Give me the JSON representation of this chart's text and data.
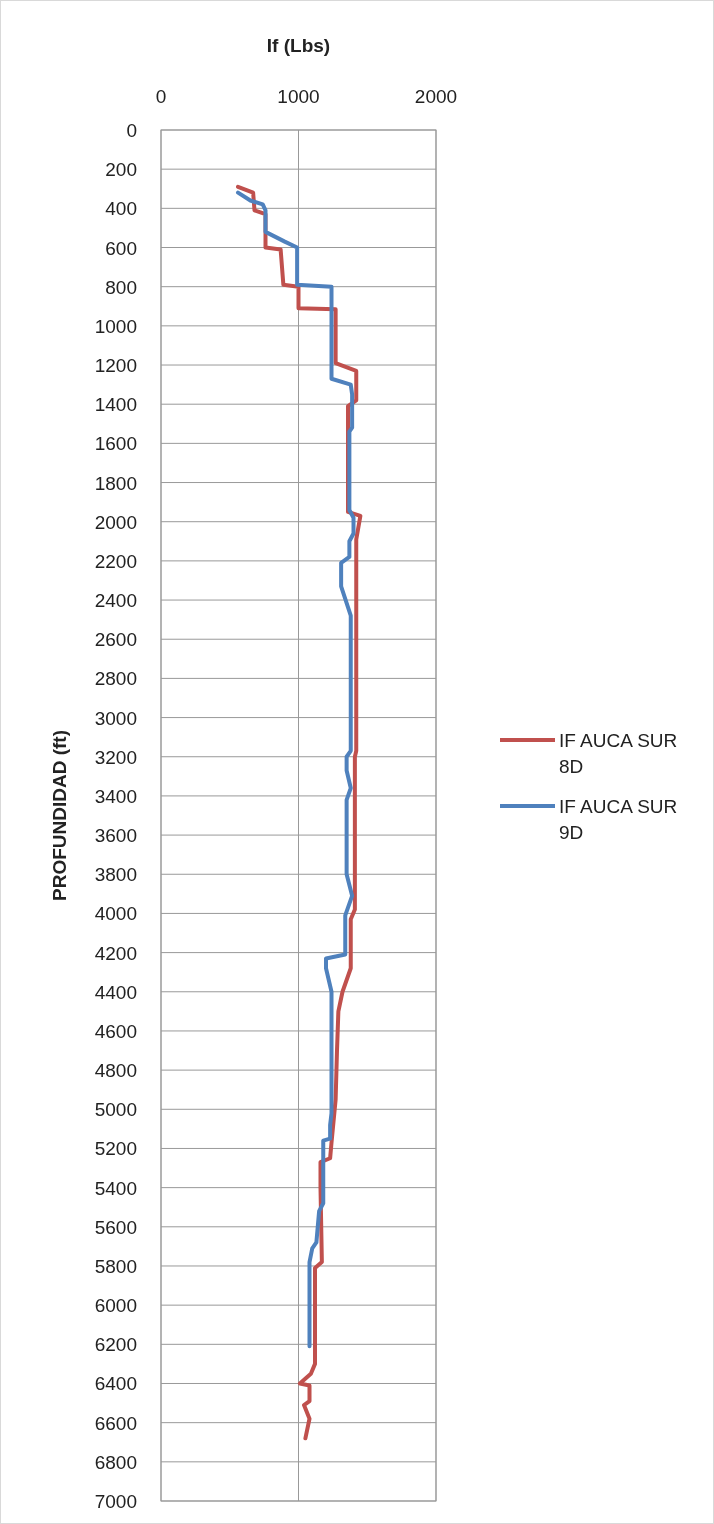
{
  "chart_data": {
    "type": "line",
    "xlabel": "If (Lbs)",
    "ylabel": "PROFUNDIDAD (ft)",
    "xlim": [
      0,
      2000
    ],
    "xticks": [
      0,
      1000,
      2000
    ],
    "ylim": [
      7000,
      0
    ],
    "yticks": [
      0,
      200,
      400,
      600,
      800,
      1000,
      1200,
      1400,
      1600,
      1800,
      2000,
      2200,
      2400,
      2600,
      2800,
      3000,
      3200,
      3400,
      3600,
      3800,
      4000,
      4200,
      4400,
      4600,
      4800,
      5000,
      5200,
      5400,
      5600,
      5800,
      6000,
      6200,
      6400,
      6600,
      6800,
      7000
    ],
    "grid": true,
    "legend": "right",
    "line_style": "solid",
    "marker": "none",
    "series": [
      {
        "name": "IF AUCA SUR 8D",
        "color": "#c0504d",
        "x": [
          560,
          670,
          680,
          760,
          760,
          870,
          890,
          1000,
          1000,
          1270,
          1270,
          1420,
          1420,
          1360,
          1360,
          1450,
          1420,
          1420,
          1410,
          1410,
          1380,
          1380,
          1320,
          1290,
          1280,
          1270,
          1240,
          1230,
          1160,
          1160,
          1170,
          1120,
          1120,
          1090,
          1010,
          1080,
          1080,
          1040,
          1080,
          1050
        ],
        "values": [
          290,
          320,
          410,
          430,
          600,
          610,
          790,
          800,
          910,
          915,
          1190,
          1230,
          1380,
          1410,
          1950,
          1970,
          2090,
          3170,
          3200,
          3980,
          4030,
          4280,
          4400,
          4500,
          4700,
          4950,
          5170,
          5250,
          5270,
          5400,
          5780,
          5810,
          6300,
          6350,
          6400,
          6410,
          6490,
          6510,
          6580,
          6680
        ]
      },
      {
        "name": "IF AUCA SUR 9D",
        "color": "#4f81bd",
        "x": [
          560,
          650,
          740,
          760,
          760,
          900,
          990,
          990,
          1240,
          1240,
          1380,
          1390,
          1390,
          1370,
          1370,
          1400,
          1400,
          1370,
          1370,
          1310,
          1310,
          1380,
          1380,
          1350,
          1350,
          1380,
          1350,
          1350,
          1390,
          1340,
          1340,
          1200,
          1200,
          1240,
          1240,
          1230,
          1230,
          1180,
          1180,
          1150,
          1130,
          1100,
          1080,
          1080
        ],
        "values": [
          320,
          360,
          380,
          410,
          520,
          570,
          600,
          790,
          800,
          1270,
          1300,
          1350,
          1520,
          1540,
          1940,
          1980,
          2060,
          2100,
          2180,
          2210,
          2330,
          2480,
          3170,
          3200,
          3270,
          3360,
          3420,
          3800,
          3910,
          4010,
          4210,
          4230,
          4280,
          4400,
          5020,
          5080,
          5150,
          5160,
          5480,
          5520,
          5680,
          5710,
          5780,
          6210
        ]
      }
    ]
  }
}
